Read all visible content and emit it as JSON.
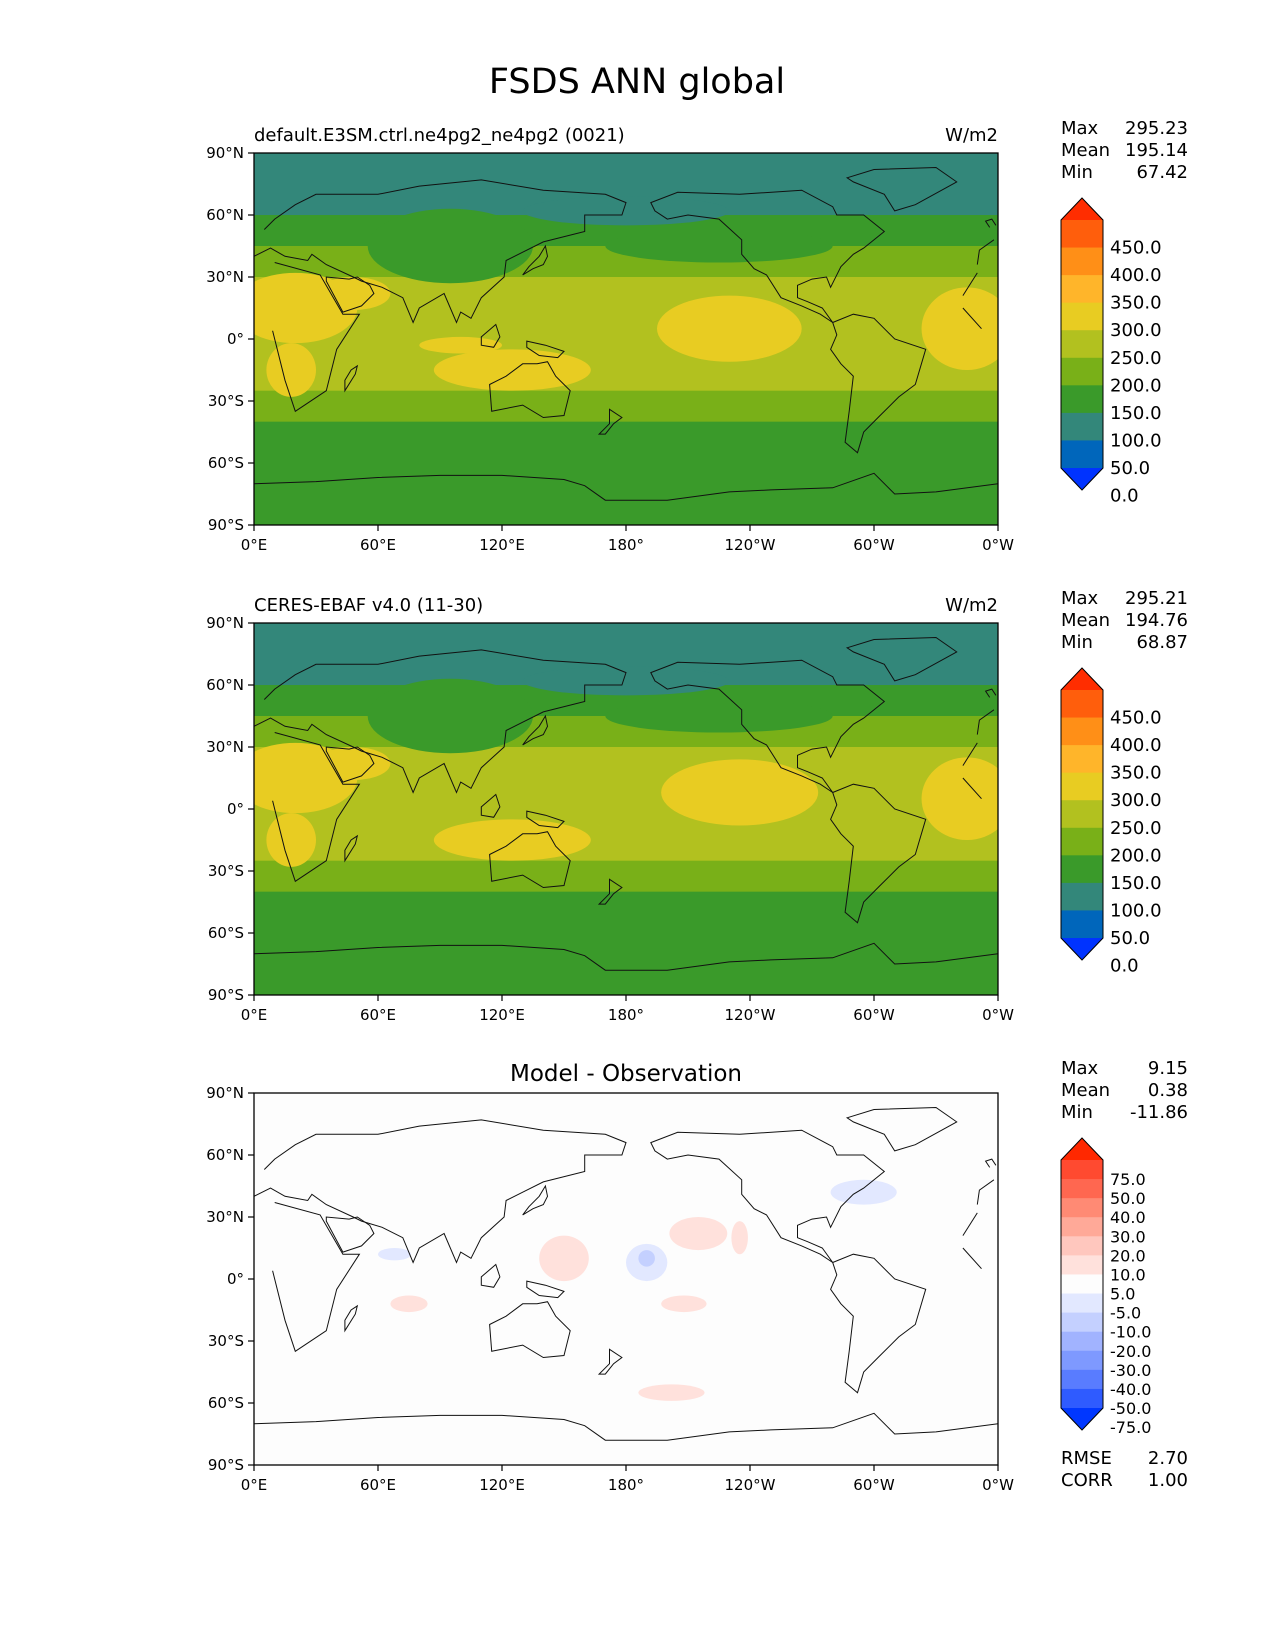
{
  "title": "FSDS ANN global",
  "axes": {
    "lat_ticks": [
      "90°N",
      "60°N",
      "30°N",
      "0°",
      "30°S",
      "60°S",
      "90°S"
    ],
    "lon_ticks": [
      "0°E",
      "60°E",
      "120°E",
      "180°",
      "120°W",
      "60°W",
      "0°W"
    ]
  },
  "stat_labels": {
    "max": "Max",
    "mean": "Mean",
    "min": "Min",
    "rmse": "RMSE",
    "corr": "CORR"
  },
  "colors": {
    "abs_bins": [
      "#0033ff",
      "#0066bb",
      "#33877a",
      "#3a9a2a",
      "#79b018",
      "#b2c11f",
      "#e8cc22",
      "#ffb52a",
      "#ff8f17",
      "#ff5e0c",
      "#ff2d00"
    ],
    "diff_bins": [
      "#0037ff",
      "#2f5bff",
      "#597cff",
      "#7e99ff",
      "#a1b3ff",
      "#c4d0ff",
      "#e2e8ff",
      "#fdfdfd",
      "#ffe1dc",
      "#ffc7be",
      "#ffa998",
      "#ff8a74",
      "#ff6750",
      "#ff4a30",
      "#ff2800"
    ],
    "coastline": "#111111"
  },
  "chart_data": [
    {
      "type": "heatmap",
      "panel": "model",
      "title": "default.E3SM.ctrl.ne4pg2_ne4pg2 (0021)",
      "units": "W/m2",
      "xlim": [
        0,
        360
      ],
      "ylim": [
        -90,
        90
      ],
      "stats": {
        "max": "295.23",
        "mean": "195.14",
        "min": "67.42"
      },
      "colorbar_levels": [
        "450.0",
        "400.0",
        "350.0",
        "300.0",
        "250.0",
        "200.0",
        "150.0",
        "100.0",
        "50.0",
        "0.0"
      ],
      "zonal_bands": [
        {
          "lat": [
            60,
            90
          ],
          "bin": 2
        },
        {
          "lat": [
            45,
            60
          ],
          "bin": 3
        },
        {
          "lat": [
            30,
            45
          ],
          "bin": 4
        },
        {
          "lat": [
            -25,
            30
          ],
          "bin": 5
        },
        {
          "lat": [
            -40,
            -25
          ],
          "bin": 4
        },
        {
          "lat": [
            -90,
            -40
          ],
          "bin": 3
        }
      ],
      "features": [
        {
          "bin": 3,
          "lon": 95,
          "lat": 45,
          "rx": 40,
          "ry": 18
        },
        {
          "bin": 2,
          "lon": 180,
          "lat": 62,
          "rx": 50,
          "ry": 7
        },
        {
          "bin": 3,
          "lon": 225,
          "lat": 45,
          "rx": 55,
          "ry": 8
        },
        {
          "bin": 6,
          "lon": 20,
          "lat": 15,
          "rx": 30,
          "ry": 17
        },
        {
          "bin": 6,
          "lon": 48,
          "lat": 22,
          "rx": 18,
          "ry": 8
        },
        {
          "bin": 6,
          "lon": 18,
          "lat": -15,
          "rx": 12,
          "ry": 13
        },
        {
          "bin": 6,
          "lon": 125,
          "lat": -15,
          "rx": 38,
          "ry": 10
        },
        {
          "bin": 6,
          "lon": 100,
          "lat": -3,
          "rx": 20,
          "ry": 4
        },
        {
          "bin": 6,
          "lon": 230,
          "lat": 5,
          "rx": 35,
          "ry": 16
        },
        {
          "bin": 6,
          "lon": 345,
          "lat": 5,
          "rx": 22,
          "ry": 20
        }
      ]
    },
    {
      "type": "heatmap",
      "panel": "observation",
      "title": "CERES-EBAF v4.0 (11-30)",
      "units": "W/m2",
      "xlim": [
        0,
        360
      ],
      "ylim": [
        -90,
        90
      ],
      "stats": {
        "max": "295.21",
        "mean": "194.76",
        "min": "68.87"
      },
      "colorbar_levels": [
        "450.0",
        "400.0",
        "350.0",
        "300.0",
        "250.0",
        "200.0",
        "150.0",
        "100.0",
        "50.0",
        "0.0"
      ],
      "zonal_bands": [
        {
          "lat": [
            60,
            90
          ],
          "bin": 2
        },
        {
          "lat": [
            45,
            60
          ],
          "bin": 3
        },
        {
          "lat": [
            30,
            45
          ],
          "bin": 4
        },
        {
          "lat": [
            -25,
            30
          ],
          "bin": 5
        },
        {
          "lat": [
            -40,
            -25
          ],
          "bin": 4
        },
        {
          "lat": [
            -90,
            -40
          ],
          "bin": 3
        }
      ],
      "features": [
        {
          "bin": 3,
          "lon": 95,
          "lat": 45,
          "rx": 40,
          "ry": 18
        },
        {
          "bin": 2,
          "lon": 180,
          "lat": 62,
          "rx": 50,
          "ry": 7
        },
        {
          "bin": 3,
          "lon": 225,
          "lat": 45,
          "rx": 55,
          "ry": 8
        },
        {
          "bin": 6,
          "lon": 20,
          "lat": 15,
          "rx": 30,
          "ry": 17
        },
        {
          "bin": 6,
          "lon": 48,
          "lat": 22,
          "rx": 18,
          "ry": 8
        },
        {
          "bin": 6,
          "lon": 18,
          "lat": -15,
          "rx": 12,
          "ry": 13
        },
        {
          "bin": 6,
          "lon": 125,
          "lat": -15,
          "rx": 38,
          "ry": 10
        },
        {
          "bin": 6,
          "lon": 235,
          "lat": 8,
          "rx": 38,
          "ry": 16
        },
        {
          "bin": 6,
          "lon": 345,
          "lat": 5,
          "rx": 22,
          "ry": 20
        }
      ]
    },
    {
      "type": "heatmap",
      "panel": "difference",
      "title": "Model - Observation",
      "units": "",
      "xlim": [
        0,
        360
      ],
      "ylim": [
        -90,
        90
      ],
      "stats": {
        "max": "9.15",
        "mean": "0.38",
        "min": "-11.86",
        "rmse": "2.70",
        "corr": "1.00"
      },
      "colorbar_levels": [
        "75.0",
        "50.0",
        "40.0",
        "30.0",
        "20.0",
        "10.0",
        "5.0",
        "-5.0",
        "-10.0",
        "-20.0",
        "-30.0",
        "-40.0",
        "-50.0",
        "-75.0"
      ],
      "zonal_bands": [
        {
          "lat": [
            -90,
            90
          ],
          "bin": 7
        }
      ],
      "features": [
        {
          "bin": 8,
          "lon": 150,
          "lat": 10,
          "rx": 12,
          "ry": 11
        },
        {
          "bin": 8,
          "lon": 215,
          "lat": 22,
          "rx": 14,
          "ry": 8
        },
        {
          "bin": 8,
          "lon": 208,
          "lat": -12,
          "rx": 11,
          "ry": 4
        },
        {
          "bin": 8,
          "lon": 75,
          "lat": -12,
          "rx": 9,
          "ry": 4
        },
        {
          "bin": 8,
          "lon": 235,
          "lat": 20,
          "rx": 4,
          "ry": 8
        },
        {
          "bin": 8,
          "lon": 202,
          "lat": -55,
          "rx": 16,
          "ry": 4
        },
        {
          "bin": 6,
          "lon": 190,
          "lat": 8,
          "rx": 10,
          "ry": 9
        },
        {
          "bin": 5,
          "lon": 190,
          "lat": 10,
          "rx": 4,
          "ry": 4
        },
        {
          "bin": 6,
          "lon": 68,
          "lat": 12,
          "rx": 8,
          "ry": 3
        },
        {
          "bin": 6,
          "lon": 295,
          "lat": 42,
          "rx": 16,
          "ry": 6
        }
      ]
    }
  ]
}
